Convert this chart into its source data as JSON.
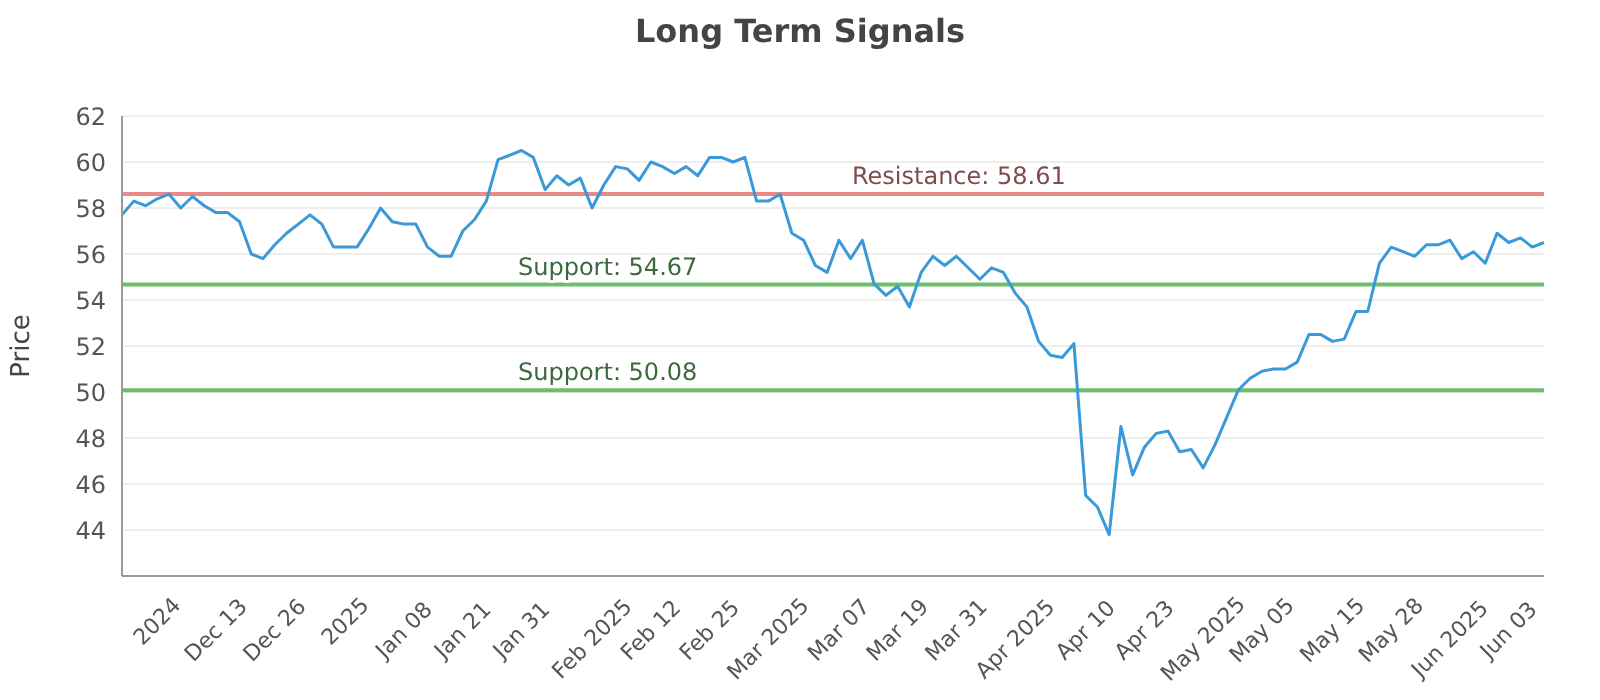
{
  "chart_data": {
    "type": "line",
    "title": "Long Term Signals",
    "ylabel": "Price",
    "categories": [
      null,
      null,
      null,
      "2024",
      null,
      null,
      null,
      null,
      "Dec 13",
      null,
      null,
      null,
      null,
      "Dec 26",
      null,
      null,
      null,
      null,
      null,
      "2025",
      null,
      null,
      null,
      null,
      "Jan 08",
      null,
      null,
      null,
      null,
      "Jan 21",
      null,
      null,
      null,
      null,
      "Jan 31",
      null,
      null,
      null,
      null,
      null,
      "Feb 2025",
      null,
      null,
      null,
      null,
      "Feb 12",
      null,
      null,
      null,
      null,
      "Feb 25",
      null,
      null,
      null,
      null,
      "Mar 2025",
      null,
      null,
      null,
      null,
      null,
      "Mar 07",
      null,
      null,
      null,
      null,
      "Mar 19",
      null,
      null,
      null,
      null,
      "Mar 31",
      null,
      null,
      null,
      null,
      "Apr 2025",
      null,
      null,
      null,
      null,
      null,
      "Apr 10",
      null,
      null,
      null,
      null,
      "Apr 23",
      null,
      null,
      null,
      null,
      "May 2025",
      null,
      null,
      null,
      null,
      "May 05",
      null,
      null,
      null,
      null,
      null,
      "May 15",
      null,
      null,
      null,
      null,
      "May 28",
      null,
      null,
      null,
      null,
      "Jun 2025",
      null,
      null,
      null,
      null,
      "Jun 03",
      null,
      null,
      null
    ],
    "series": [
      {
        "color": "#3a9ad9",
        "values": [
          57.7,
          58.3,
          58.1,
          58.4,
          58.6,
          58.0,
          58.5,
          58.1,
          57.8,
          57.8,
          57.4,
          56.0,
          55.8,
          56.4,
          56.9,
          57.3,
          57.7,
          57.3,
          56.3,
          56.3,
          56.3,
          57.1,
          58.0,
          57.4,
          57.3,
          57.3,
          56.3,
          55.9,
          55.9,
          57.0,
          57.5,
          58.3,
          60.1,
          60.3,
          60.5,
          60.2,
          58.8,
          59.4,
          59.0,
          59.3,
          58.0,
          59.0,
          59.8,
          59.7,
          59.2,
          60.0,
          59.8,
          59.5,
          59.8,
          59.4,
          60.2,
          60.2,
          60.0,
          60.2,
          58.3,
          58.3,
          58.6,
          56.9,
          56.6,
          55.5,
          55.2,
          56.6,
          55.8,
          56.6,
          54.7,
          54.2,
          54.6,
          53.7,
          55.2,
          55.9,
          55.5,
          55.9,
          55.4,
          54.9,
          55.4,
          55.2,
          54.3,
          53.7,
          52.2,
          51.6,
          51.5,
          52.1,
          45.5,
          45.0,
          43.8,
          48.5,
          46.4,
          47.6,
          48.2,
          48.3,
          47.4,
          47.5,
          46.7,
          47.7,
          48.9,
          50.1,
          50.6,
          50.9,
          51.0,
          51.0,
          51.3,
          52.5,
          52.5,
          52.2,
          52.3,
          53.5,
          53.5,
          55.6,
          56.3,
          56.1,
          55.9,
          56.4,
          56.4,
          56.6,
          55.8,
          56.1,
          55.6,
          56.9,
          56.5,
          56.7,
          56.3,
          56.5
        ]
      }
    ],
    "ylim": [
      42,
      62
    ],
    "yticks": [
      44,
      46,
      48,
      50,
      52,
      54,
      56,
      58,
      60,
      62
    ],
    "grid": "y",
    "marker": "none",
    "line_style": "solid",
    "ref_lines": [
      {
        "axis": "y",
        "value": 58.61,
        "label": "Resistance: 58.61",
        "color": "#e8898a"
      },
      {
        "axis": "y",
        "value": 54.67,
        "label": "Support: 54.67",
        "color": "#6dbf6d"
      },
      {
        "axis": "y",
        "value": 50.08,
        "label": "Support: 50.08",
        "color": "#6dbf6d"
      }
    ]
  }
}
